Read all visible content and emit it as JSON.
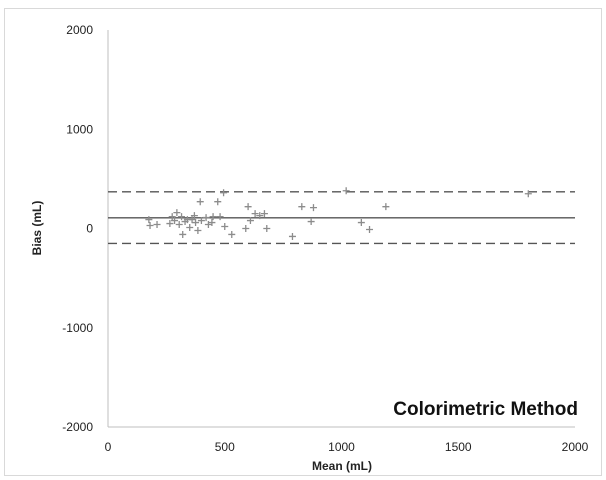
{
  "chart_data": {
    "type": "scatter",
    "title": "",
    "xlabel": "Mean (mL)",
    "ylabel": "Bias (mL)",
    "annotation": "Colorimetric Method",
    "xlim": [
      0,
      2000
    ],
    "ylim": [
      -2000,
      2000
    ],
    "x_ticks": [
      0,
      500,
      1000,
      1500,
      2000
    ],
    "y_ticks": [
      2000,
      1000,
      0,
      -1000,
      -2000
    ],
    "grid": false,
    "marker": "plus",
    "reference_lines": [
      {
        "kind": "mean_bias",
        "style": "solid",
        "y": 108
      },
      {
        "kind": "upper_limit_of_agreement",
        "style": "dashed",
        "y": 370
      },
      {
        "kind": "lower_limit_of_agreement",
        "style": "dashed",
        "y": -150
      }
    ],
    "points": [
      {
        "x": 175,
        "y": 90
      },
      {
        "x": 180,
        "y": 30
      },
      {
        "x": 210,
        "y": 40
      },
      {
        "x": 265,
        "y": 50
      },
      {
        "x": 275,
        "y": 120
      },
      {
        "x": 285,
        "y": 80
      },
      {
        "x": 295,
        "y": 160
      },
      {
        "x": 305,
        "y": 40
      },
      {
        "x": 315,
        "y": 120
      },
      {
        "x": 320,
        "y": -60
      },
      {
        "x": 330,
        "y": 70
      },
      {
        "x": 340,
        "y": 90
      },
      {
        "x": 350,
        "y": 10
      },
      {
        "x": 360,
        "y": 90
      },
      {
        "x": 370,
        "y": 130
      },
      {
        "x": 375,
        "y": 60
      },
      {
        "x": 385,
        "y": -20
      },
      {
        "x": 395,
        "y": 270
      },
      {
        "x": 400,
        "y": 80
      },
      {
        "x": 420,
        "y": 110
      },
      {
        "x": 430,
        "y": 40
      },
      {
        "x": 445,
        "y": 60
      },
      {
        "x": 450,
        "y": 120
      },
      {
        "x": 470,
        "y": 270
      },
      {
        "x": 480,
        "y": 120
      },
      {
        "x": 495,
        "y": 360
      },
      {
        "x": 500,
        "y": 20
      },
      {
        "x": 530,
        "y": -60
      },
      {
        "x": 590,
        "y": 0
      },
      {
        "x": 600,
        "y": 220
      },
      {
        "x": 610,
        "y": 80
      },
      {
        "x": 630,
        "y": 150
      },
      {
        "x": 650,
        "y": 130
      },
      {
        "x": 670,
        "y": 150
      },
      {
        "x": 680,
        "y": 0
      },
      {
        "x": 790,
        "y": -80
      },
      {
        "x": 830,
        "y": 220
      },
      {
        "x": 870,
        "y": 70
      },
      {
        "x": 880,
        "y": 210
      },
      {
        "x": 1020,
        "y": 380
      },
      {
        "x": 1085,
        "y": 60
      },
      {
        "x": 1120,
        "y": -10
      },
      {
        "x": 1190,
        "y": 220
      },
      {
        "x": 1800,
        "y": 350
      }
    ]
  }
}
